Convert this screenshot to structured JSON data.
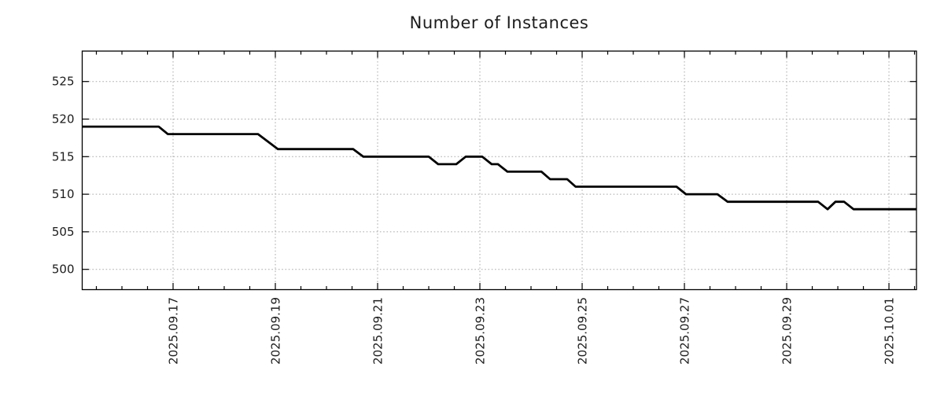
{
  "chart_data": {
    "type": "line",
    "title": "Number of Instances",
    "style": "step-like time series, black line on white, dotted gray grid",
    "x_axis": {
      "unit": "days since 2025-09-17 00:00",
      "lim": [
        -1.777,
        14.538
      ],
      "major_ticks": [
        {
          "t": 0,
          "label": "2025.09.17"
        },
        {
          "t": 2,
          "label": "2025.09.19"
        },
        {
          "t": 4,
          "label": "2025.09.21"
        },
        {
          "t": 6,
          "label": "2025.09.23"
        },
        {
          "t": 8,
          "label": "2025.09.25"
        },
        {
          "t": 10,
          "label": "2025.09.27"
        },
        {
          "t": 12,
          "label": "2025.09.29"
        },
        {
          "t": 14,
          "label": "2025.10.01"
        }
      ],
      "minor_tick_interval": 0.5,
      "grid": true
    },
    "y_axis": {
      "lim": [
        497.3,
        529.05
      ],
      "major_ticks": [
        {
          "v": 500,
          "label": "500"
        },
        {
          "v": 505,
          "label": "505"
        },
        {
          "v": 510,
          "label": "510"
        },
        {
          "v": 515,
          "label": "515"
        },
        {
          "v": 520,
          "label": "520"
        },
        {
          "v": 525,
          "label": "525"
        }
      ],
      "grid": true
    },
    "series": [
      {
        "name": "instances",
        "color": "#000000",
        "line_width": 2.8,
        "points": [
          [
            -1.777,
            519
          ],
          [
            -0.282,
            519
          ],
          [
            -0.103,
            518
          ],
          [
            1.662,
            518
          ],
          [
            2.051,
            516
          ],
          [
            3.523,
            516
          ],
          [
            3.718,
            515
          ],
          [
            5.0,
            515
          ],
          [
            5.185,
            514
          ],
          [
            5.538,
            514
          ],
          [
            5.723,
            515
          ],
          [
            6.046,
            515
          ],
          [
            6.231,
            514
          ],
          [
            6.354,
            514
          ],
          [
            6.538,
            513
          ],
          [
            7.205,
            513
          ],
          [
            7.374,
            512
          ],
          [
            7.708,
            512
          ],
          [
            7.872,
            511
          ],
          [
            9.846,
            511
          ],
          [
            10.031,
            510
          ],
          [
            10.646,
            510
          ],
          [
            10.846,
            509
          ],
          [
            12.615,
            509
          ],
          [
            12.8,
            508
          ],
          [
            12.954,
            509
          ],
          [
            13.123,
            509
          ],
          [
            13.308,
            508
          ],
          [
            14.538,
            508
          ]
        ]
      }
    ],
    "colors": {
      "grid": "#a9a9a9",
      "axis": "#000000",
      "text": "#1c1c1c",
      "background": "#ffffff"
    },
    "legend": "none"
  }
}
